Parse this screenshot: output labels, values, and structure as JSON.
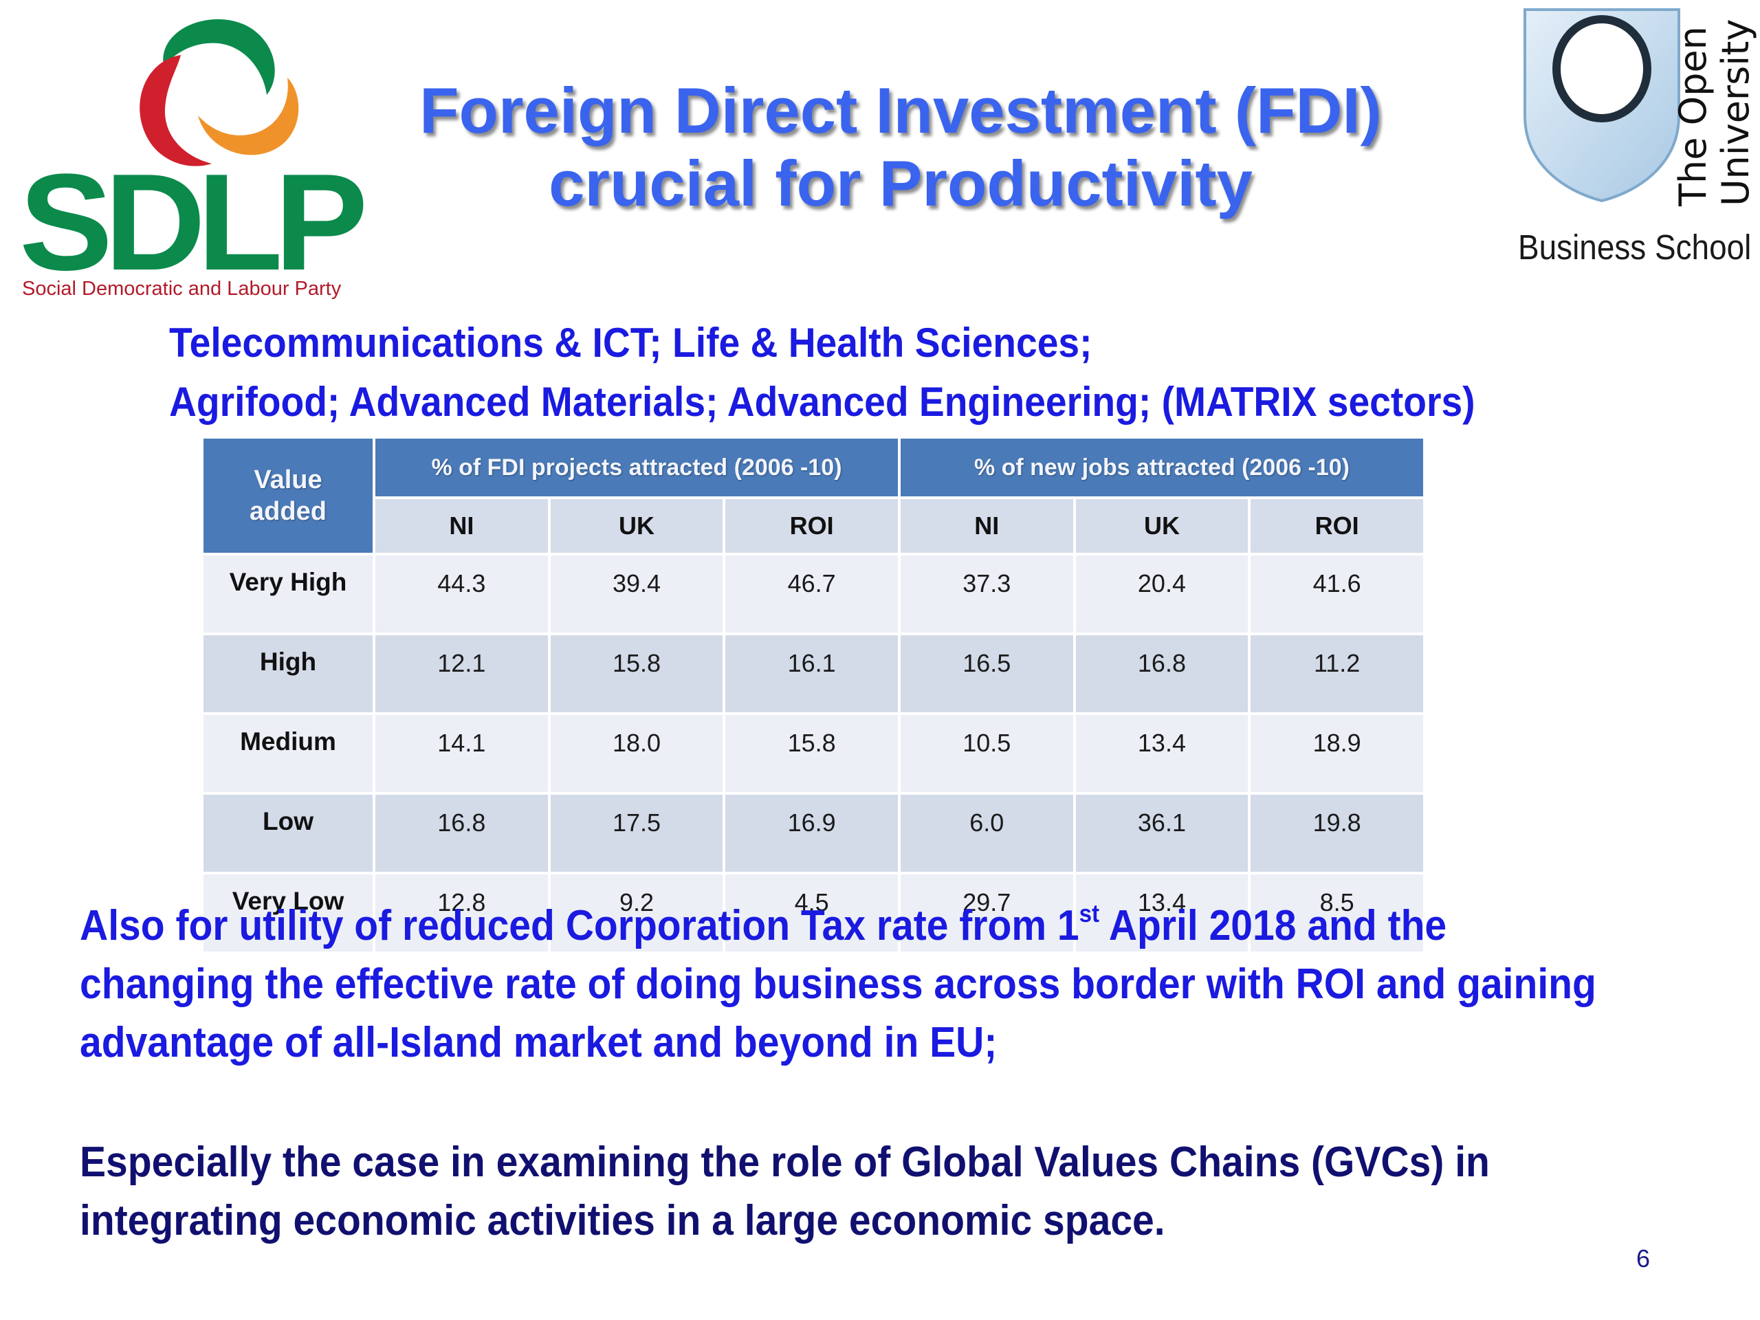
{
  "title": {
    "line1": "Foreign Direct Investment (FDI)",
    "line2": "crucial for Productivity"
  },
  "logos": {
    "sdlp_wordmark": "SDLP",
    "sdlp_tagline": "Social Democratic and Labour Party",
    "ou_name_line1": "The Open",
    "ou_name_line2": "University",
    "ou_school": "Business School"
  },
  "sectors": {
    "line1": "Telecommunications & ICT; Life & Health Sciences;",
    "line2": "Agrifood; Advanced Materials; Advanced Engineering; (MATRIX sectors)"
  },
  "table": {
    "corner_line1": "Value",
    "corner_line2": "added",
    "group1": "% of FDI projects attracted (2006 -10)",
    "group2": "% of new jobs attracted (2006 -10)",
    "subheaders": [
      "NI",
      "UK",
      "ROI",
      "NI",
      "UK",
      "ROI"
    ],
    "rows": [
      {
        "label": "Very High",
        "values": [
          "44.3",
          "39.4",
          "46.7",
          "37.3",
          "20.4",
          "41.6"
        ]
      },
      {
        "label": "High",
        "values": [
          "12.1",
          "15.8",
          "16.1",
          "16.5",
          "16.8",
          "11.2"
        ]
      },
      {
        "label": "Medium",
        "values": [
          "14.1",
          "18.0",
          "15.8",
          "10.5",
          "13.4",
          "18.9"
        ]
      },
      {
        "label": "Low",
        "values": [
          "16.8",
          "17.5",
          "16.9",
          "6.0",
          "36.1",
          "19.8"
        ]
      },
      {
        "label": "Very Low",
        "values": [
          "12.8",
          "9.2",
          "4.5",
          "29.7",
          "13.4",
          "8.5"
        ]
      }
    ]
  },
  "paragraph1": {
    "line1_before": "Also for utility of reduced Corporation Tax rate from 1",
    "line1_sup": "st",
    "line1_after": " April 2018 and the",
    "line2": "changing the effective rate of doing business across border with ROI and gaining",
    "line3": "advantage of all-Island market and beyond in EU;"
  },
  "paragraph2": {
    "line1": "Especially the case in examining the role of Global Values Chains (GVCs) in",
    "line2": "integrating economic activities in a large economic space."
  },
  "page_number": "6",
  "colors": {
    "title_blue": "#3a64ee",
    "text_blue": "#1a1ae0",
    "text_navy": "#111070",
    "sdlp_green": "#0b8a4b",
    "sdlp_red": "#d0202e",
    "sdlp_orange": "#f0922a",
    "table_header": "#4a7ab8",
    "ou_shield": "#c9dff0"
  }
}
